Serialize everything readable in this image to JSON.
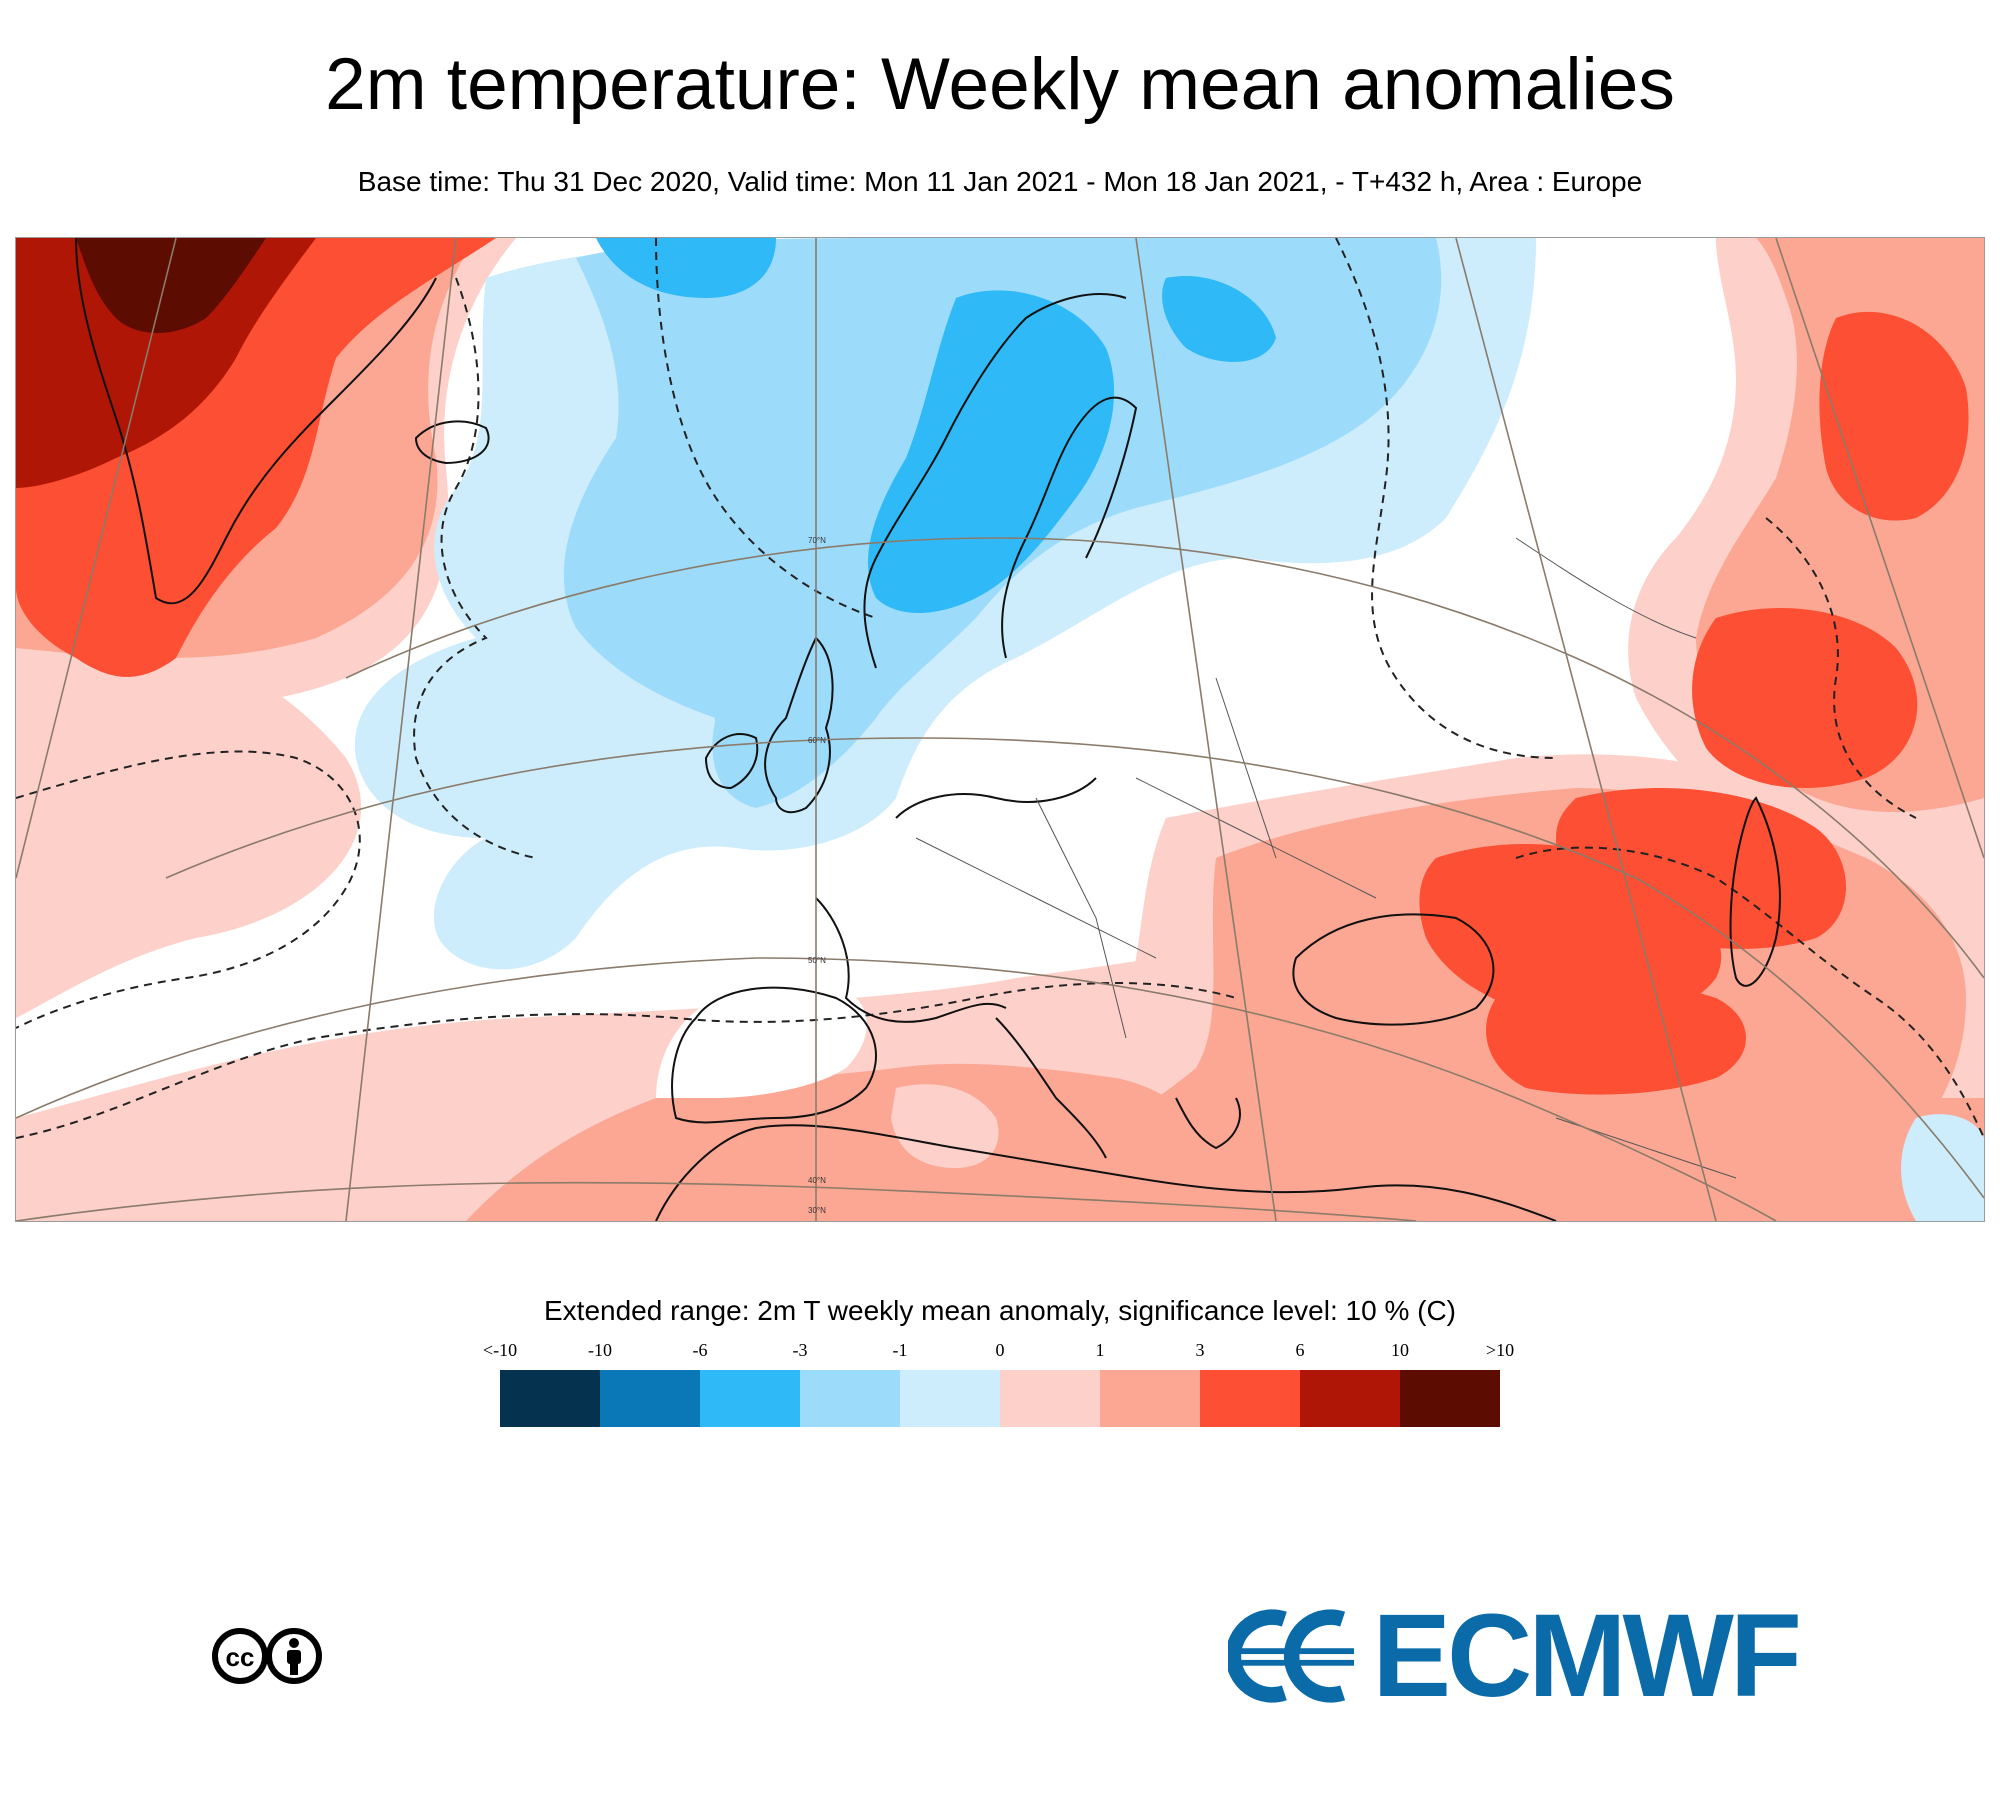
{
  "title": "2m temperature: Weekly mean anomalies",
  "subtitle": "Base time: Thu 31 Dec 2020, Valid time: Mon 11 Jan 2021 - Mon 18 Jan 2021, - T+432 h, Area : Europe",
  "map": {
    "latitude_labels": [
      "70°N",
      "60°N",
      "50°N",
      "40°N",
      "30°N"
    ]
  },
  "legend": {
    "title": "Extended range: 2m T weekly mean anomaly, significance level: 10 % (C)",
    "ticks": [
      "<-10",
      "-10",
      "-6",
      "-3",
      "-1",
      "0",
      "1",
      "3",
      "6",
      "10",
      ">10"
    ],
    "colors": [
      "#04324f",
      "#0a77b7",
      "#2fb9f6",
      "#9ddbfb",
      "#cdecfc",
      "#fdd0ca",
      "#fca793",
      "#fc4f33",
      "#b01605",
      "#5d0c02"
    ]
  },
  "cc_license": "cc by",
  "logo": {
    "text": "ECMWF",
    "color": "#0b6aa8"
  }
}
